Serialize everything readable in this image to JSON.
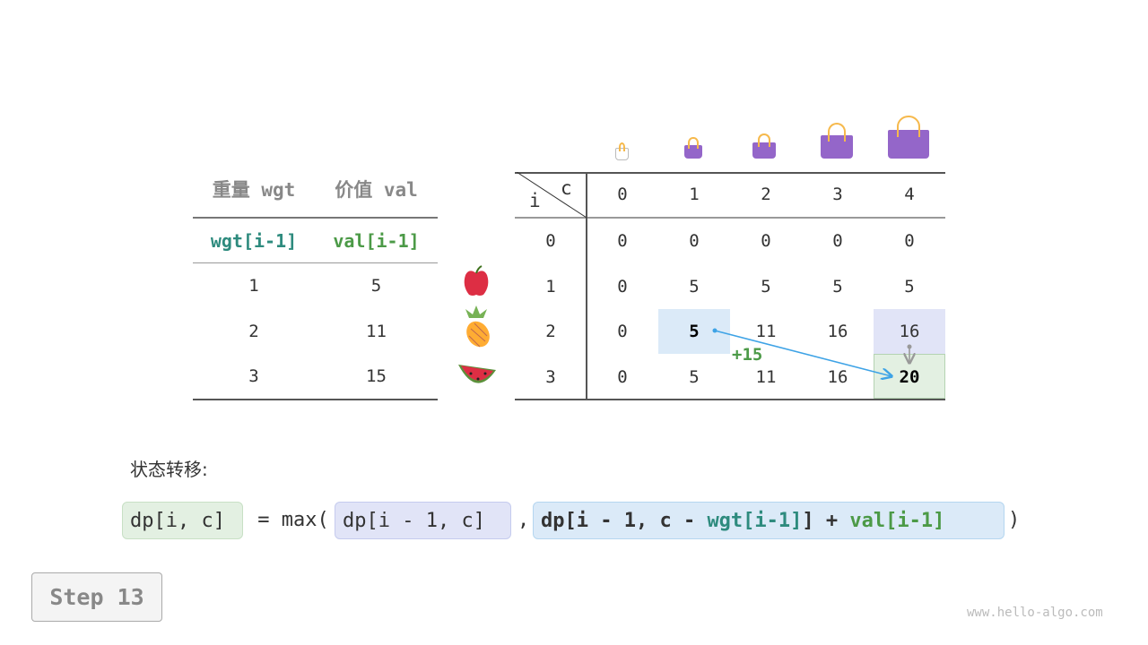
{
  "left_table": {
    "headers": [
      "重量 wgt",
      "价值 val"
    ],
    "subheaders": [
      "wgt[i-1]",
      "val[i-1]"
    ],
    "rows": [
      [
        "1",
        "5"
      ],
      [
        "2",
        "11"
      ],
      [
        "3",
        "15"
      ]
    ]
  },
  "fruits": [
    "apple",
    "pineapple",
    "watermelon"
  ],
  "dp_table": {
    "corner_i": "i",
    "corner_c": "c",
    "col_headers": [
      "0",
      "1",
      "2",
      "3",
      "4"
    ],
    "row_headers": [
      "0",
      "1",
      "2",
      "3"
    ],
    "rows": [
      [
        "0",
        "0",
        "0",
        "0",
        "0"
      ],
      [
        "0",
        "5",
        "5",
        "5",
        "5"
      ],
      [
        "0",
        "5",
        "11",
        "16",
        "16"
      ],
      [
        "0",
        "5",
        "11",
        "16",
        "20"
      ]
    ]
  },
  "annotation": "+15",
  "colors": {
    "teal": "#2e8b7e",
    "green": "#4c9a47",
    "blue_cell": "#dbeaf8",
    "purple_cell": "#e1e4f7",
    "green_cell": "#e3f0e2",
    "arrow": "#3ea3e6"
  },
  "formula": {
    "label": "状态转移:",
    "lhs": "dp[i, c]",
    "eq": " = max(",
    "opt1": "dp[i - 1, c]",
    "comma": ",",
    "opt2_a": "dp[i - 1, c - ",
    "opt2_wgt": "wgt[i-1]",
    "opt2_b": "] + ",
    "opt2_val": "val[i-1]",
    "close": ")"
  },
  "step": "Step 13",
  "watermark": "www.hello-algo.com"
}
